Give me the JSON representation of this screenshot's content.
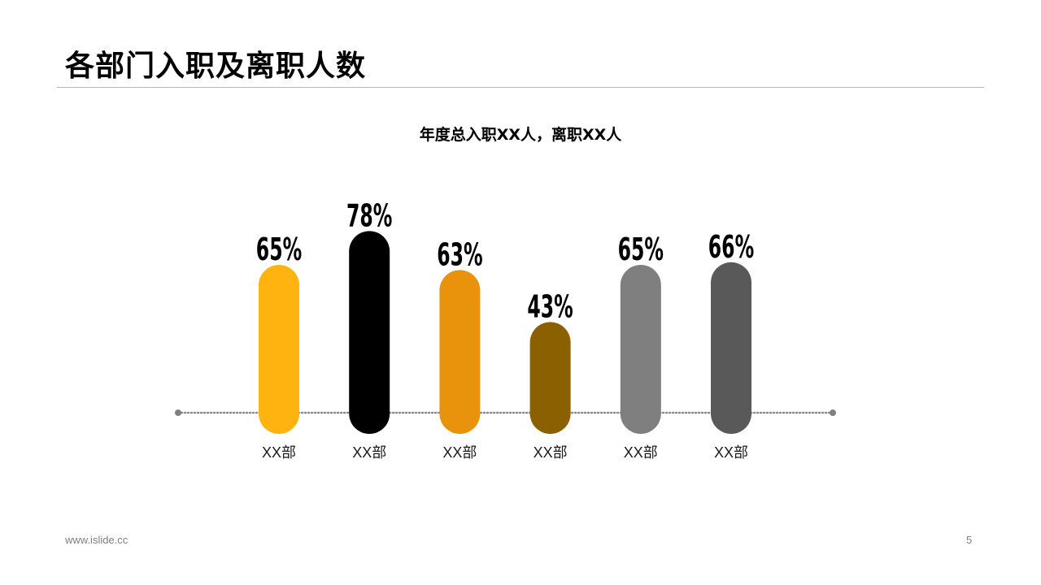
{
  "slide": {
    "title": "各部门入职及离职人数",
    "page_number": "5"
  },
  "footer": {
    "url": "www.islide.cc"
  },
  "chart_data": {
    "type": "bar",
    "title": "年度总入职XX人，离职XX人",
    "xlabel": "",
    "ylabel": "",
    "ylim": [
      0,
      100
    ],
    "grid": false,
    "categories": [
      "XX部",
      "XX部",
      "XX部",
      "XX部",
      "XX部",
      "XX部"
    ],
    "values": [
      65,
      78,
      63,
      43,
      65,
      66
    ],
    "value_labels": [
      "65%",
      "78%",
      "63%",
      "43%",
      "65%",
      "66%"
    ],
    "colors": [
      "#FFB30F",
      "#000000",
      "#E8930B",
      "#8B6000",
      "#7F7F7F",
      "#595959"
    ]
  }
}
